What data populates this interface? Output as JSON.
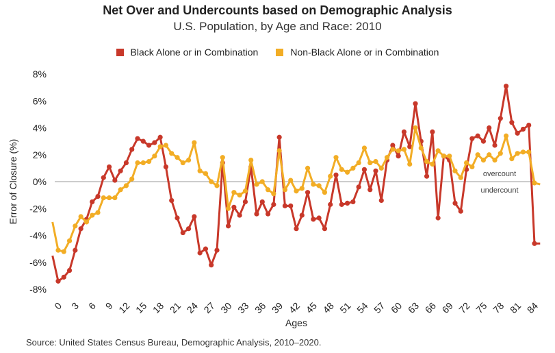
{
  "chart_data": {
    "type": "line",
    "title": "Net Over and Undercounts based on Demographic Analysis",
    "subtitle": "U.S. Population, by Age and Race: 2010",
    "xlabel": "Ages",
    "ylabel": "Error of Closure (%)",
    "xlim": [
      0,
      84
    ],
    "ylim": [
      -8,
      8
    ],
    "x_ticks": [
      0,
      3,
      6,
      9,
      12,
      15,
      18,
      21,
      24,
      27,
      30,
      33,
      36,
      39,
      42,
      45,
      48,
      51,
      54,
      57,
      60,
      63,
      66,
      69,
      72,
      75,
      78,
      81,
      84
    ],
    "y_ticks": [
      "8%",
      "6%",
      "4%",
      "2%",
      "0%",
      "-2%",
      "-4%",
      "-6%",
      "-8%"
    ],
    "y_tick_values": [
      8,
      6,
      4,
      2,
      0,
      -2,
      -4,
      -6,
      -8
    ],
    "grid": false,
    "zero_line": true,
    "legend_position": "top-center",
    "annotations": {
      "overcount": "overcount",
      "undercount": "undercount"
    },
    "x": [
      -1,
      0,
      1,
      2,
      3,
      4,
      5,
      6,
      7,
      8,
      9,
      10,
      11,
      12,
      13,
      14,
      15,
      16,
      17,
      18,
      19,
      20,
      21,
      22,
      23,
      24,
      25,
      26,
      27,
      28,
      29,
      30,
      31,
      32,
      33,
      34,
      35,
      36,
      37,
      38,
      39,
      40,
      41,
      42,
      43,
      44,
      45,
      46,
      47,
      48,
      49,
      50,
      51,
      52,
      53,
      54,
      55,
      56,
      57,
      58,
      59,
      60,
      61,
      62,
      63,
      64,
      65,
      66,
      67,
      68,
      69,
      70,
      71,
      72,
      73,
      74,
      75,
      76,
      77,
      78,
      79,
      80,
      81,
      82,
      83,
      84,
      85
    ],
    "series": [
      {
        "name": "Black Alone or in Combination",
        "color": "#c8382a",
        "values": [
          -5.5,
          -7.4,
          -7.1,
          -6.6,
          -5.1,
          -3.5,
          -2.8,
          -1.5,
          -1.1,
          0.3,
          1.1,
          0.1,
          0.8,
          1.4,
          2.4,
          3.2,
          3.0,
          2.7,
          2.9,
          3.3,
          1.1,
          -1.4,
          -2.7,
          -3.8,
          -3.5,
          -2.6,
          -5.3,
          -5.0,
          -6.2,
          -5.1,
          1.4,
          -3.3,
          -1.9,
          -2.5,
          -1.5,
          1.1,
          -2.4,
          -1.5,
          -2.4,
          -1.7,
          3.3,
          -1.8,
          -1.8,
          -3.5,
          -2.5,
          -0.8,
          -2.8,
          -2.7,
          -3.5,
          -1.7,
          0.5,
          -1.7,
          -1.6,
          -1.5,
          -0.4,
          0.9,
          -0.6,
          0.8,
          -1.4,
          1.6,
          2.7,
          1.9,
          3.7,
          2.6,
          5.8,
          3.0,
          0.4,
          3.7,
          -2.7,
          1.9,
          1.6,
          -1.6,
          -2.2,
          0.9,
          3.2,
          3.4,
          3.0,
          4.0,
          2.7,
          4.7,
          7.1,
          4.4,
          3.6,
          3.9,
          4.2,
          -4.6,
          -4.6
        ]
      },
      {
        "name": "Non-Black Alone or in Combination",
        "color": "#f2ad25",
        "values": [
          -3.0,
          -5.1,
          -5.2,
          -4.4,
          -3.3,
          -2.6,
          -3.0,
          -2.5,
          -2.3,
          -1.2,
          -1.2,
          -1.2,
          -0.6,
          -0.3,
          0.2,
          1.4,
          1.4,
          1.5,
          1.9,
          2.6,
          2.7,
          2.1,
          1.8,
          1.4,
          1.6,
          2.9,
          0.8,
          0.6,
          0.0,
          -0.3,
          1.8,
          -2.0,
          -0.8,
          -1.0,
          -0.7,
          1.6,
          -0.2,
          0.0,
          -0.6,
          -0.9,
          2.3,
          -0.6,
          0.1,
          -0.7,
          -0.5,
          1.0,
          -0.2,
          -0.3,
          -0.8,
          0.4,
          1.8,
          0.9,
          0.7,
          1.0,
          1.4,
          2.5,
          1.4,
          1.5,
          1.0,
          1.8,
          2.4,
          2.3,
          2.4,
          1.3,
          4.0,
          2.5,
          1.5,
          1.3,
          2.3,
          1.9,
          1.9,
          0.8,
          0.3,
          1.4,
          1.1,
          2.0,
          1.6,
          2.0,
          1.6,
          2.1,
          3.4,
          1.7,
          2.1,
          2.2,
          2.2,
          -0.1,
          -0.2
        ]
      }
    ],
    "source": "Source: United States Census Bureau, Demographic Analysis, 2010–2020."
  }
}
